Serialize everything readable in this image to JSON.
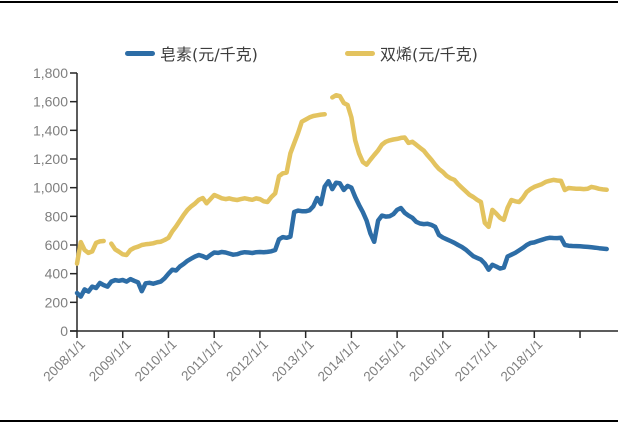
{
  "page": {
    "background": "#ffffff",
    "border_color": "#000000"
  },
  "legend": {
    "position": "top",
    "items": [
      {
        "label": "皂素(元/千克)",
        "color": "#2d6da6"
      },
      {
        "label": "双烯(元/千克)",
        "color": "#e3c35f"
      }
    ]
  },
  "axis_style": {
    "axis_color": "#262626",
    "tick_label_color": "#7f7f7f"
  },
  "chart_data": {
    "type": "line",
    "title": "",
    "xlabel": "",
    "ylabel": "",
    "grid": false,
    "legend_position": "top",
    "x_frequency": "monthly",
    "x_start": "2008/1",
    "x_end": "2019/8",
    "x_tick_labels": [
      "2008/1/1",
      "2009/1/1",
      "2010/1/1",
      "2011/1/1",
      "2012/1/1",
      "2013/1/1",
      "2014/1/1",
      "2015/1/1",
      "2016/1/1",
      "2017/1/1",
      "2018/1/1"
    ],
    "ylim": [
      0,
      1800
    ],
    "y_ticks": [
      0,
      200,
      400,
      600,
      800,
      1000,
      1200,
      1400,
      1600,
      1800
    ],
    "y_tick_labels": [
      "0",
      "200",
      "400",
      "600",
      "800",
      "1,000",
      "1,200",
      "1,400",
      "1,600",
      "1,800"
    ],
    "series": [
      {
        "name": "皂素(元/千克)",
        "color": "#2d6da6",
        "values": [
          265,
          240,
          290,
          275,
          310,
          300,
          335,
          320,
          310,
          345,
          355,
          350,
          356,
          345,
          362,
          350,
          340,
          278,
          333,
          336,
          330,
          338,
          345,
          368,
          400,
          428,
          422,
          450,
          468,
          490,
          505,
          520,
          530,
          522,
          509,
          530,
          548,
          545,
          551,
          548,
          540,
          532,
          536,
          545,
          550,
          548,
          544,
          550,
          551,
          549,
          552,
          556,
          565,
          640,
          655,
          650,
          658,
          830,
          840,
          836,
          835,
          842,
          870,
          928,
          885,
          1008,
          1045,
          990,
          1035,
          1030,
          984,
          1012,
          1000,
          935,
          880,
          830,
          770,
          680,
          622,
          770,
          805,
          798,
          800,
          815,
          845,
          858,
          825,
          805,
          790,
          762,
          750,
          746,
          748,
          740,
          726,
          670,
          652,
          640,
          628,
          615,
          600,
          586,
          568,
          545,
          522,
          510,
          498,
          470,
          428,
          462,
          450,
          436,
          442,
          520,
          532,
          545,
          562,
          580,
          600,
          614,
          618,
          628,
          636,
          645,
          650,
          649,
          648,
          650,
          600,
          595,
          593,
          592,
          591,
          589,
          587,
          584,
          581,
          578,
          575,
          572
        ]
      },
      {
        "name": "双烯(元/千克)",
        "color": "#e3c35f",
        "values": [
          470,
          620,
          565,
          545,
          555,
          615,
          625,
          628,
          null,
          610,
          570,
          553,
          535,
          530,
          565,
          580,
          588,
          600,
          605,
          608,
          612,
          620,
          623,
          635,
          650,
          695,
          730,
          770,
          810,
          845,
          870,
          890,
          915,
          928,
          891,
          920,
          949,
          938,
          926,
          920,
          925,
          918,
          914,
          920,
          926,
          920,
          915,
          925,
          920,
          905,
          900,
          935,
          960,
          1080,
          1100,
          1105,
          1240,
          1310,
          1380,
          1460,
          1475,
          1490,
          1500,
          1505,
          1510,
          1512,
          null,
          1630,
          1645,
          1638,
          1591,
          1577,
          1490,
          1330,
          1240,
          1180,
          1160,
          1195,
          1228,
          1260,
          1300,
          1320,
          1330,
          1336,
          1340,
          1347,
          1350,
          1312,
          1320,
          1300,
          1278,
          1258,
          1225,
          1195,
          1160,
          1130,
          1110,
          1082,
          1065,
          1055,
          1025,
          1000,
          975,
          950,
          935,
          915,
          900,
          755,
          726,
          845,
          820,
          790,
          775,
          860,
          914,
          905,
          900,
          930,
          970,
          990,
          1005,
          1015,
          1025,
          1040,
          1048,
          1054,
          1050,
          1047,
          984,
          998,
          995,
          993,
          992,
          990,
          992,
          1005,
          1000,
          992,
          988,
          985
        ]
      }
    ]
  }
}
